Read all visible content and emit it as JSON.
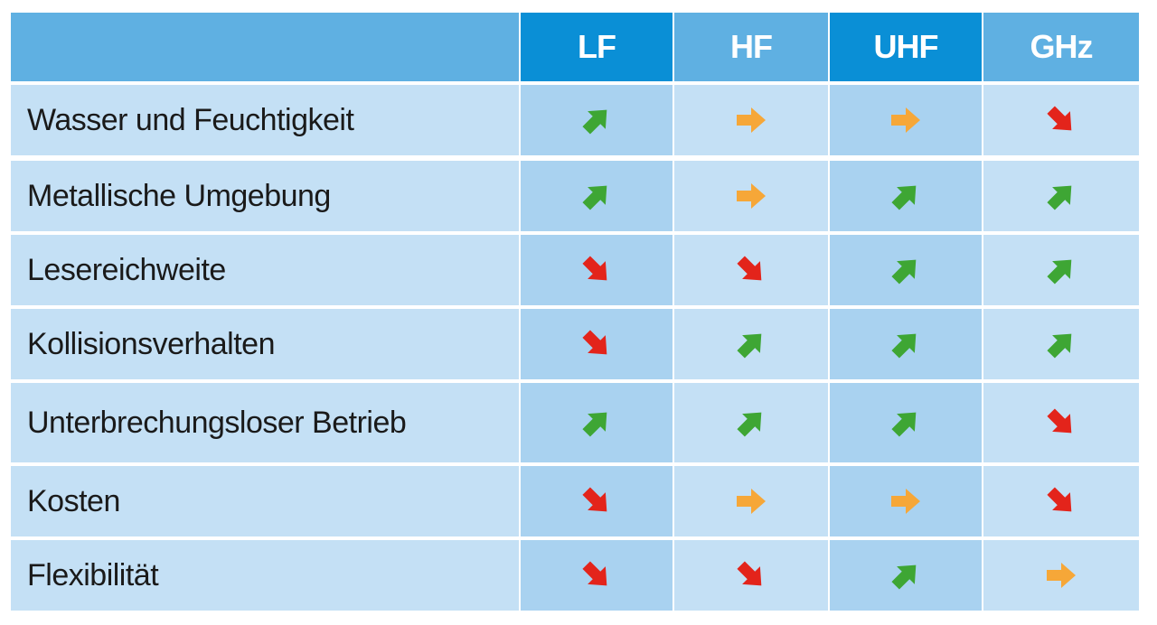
{
  "columns": [
    "LF",
    "HF",
    "UHF",
    "GHz"
  ],
  "rows": [
    {
      "label": "Wasser und Feuchtigkeit",
      "ratings": [
        "up",
        "right",
        "right",
        "down"
      ]
    },
    {
      "label": "Metallische Umgebung",
      "ratings": [
        "up",
        "right",
        "up",
        "up"
      ]
    },
    {
      "label": "Lesereichweite",
      "ratings": [
        "down",
        "down",
        "up",
        "up"
      ]
    },
    {
      "label": "Kollisionsverhalten",
      "ratings": [
        "down",
        "up",
        "up",
        "up"
      ]
    },
    {
      "label": "Unterbrechungsloser Betrieb",
      "ratings": [
        "up",
        "up",
        "up",
        "down"
      ]
    },
    {
      "label": "Kosten",
      "ratings": [
        "down",
        "right",
        "right",
        "down"
      ]
    },
    {
      "label": "Flexibilität",
      "ratings": [
        "down",
        "down",
        "up",
        "right"
      ]
    }
  ],
  "rating_icons": {
    "up": {
      "icon": "arrow-up-right-icon",
      "color": "#3ea634"
    },
    "right": {
      "icon": "arrow-right-icon",
      "color": "#f6a738"
    },
    "down": {
      "icon": "arrow-down-right-icon",
      "color": "#e3241b"
    }
  }
}
